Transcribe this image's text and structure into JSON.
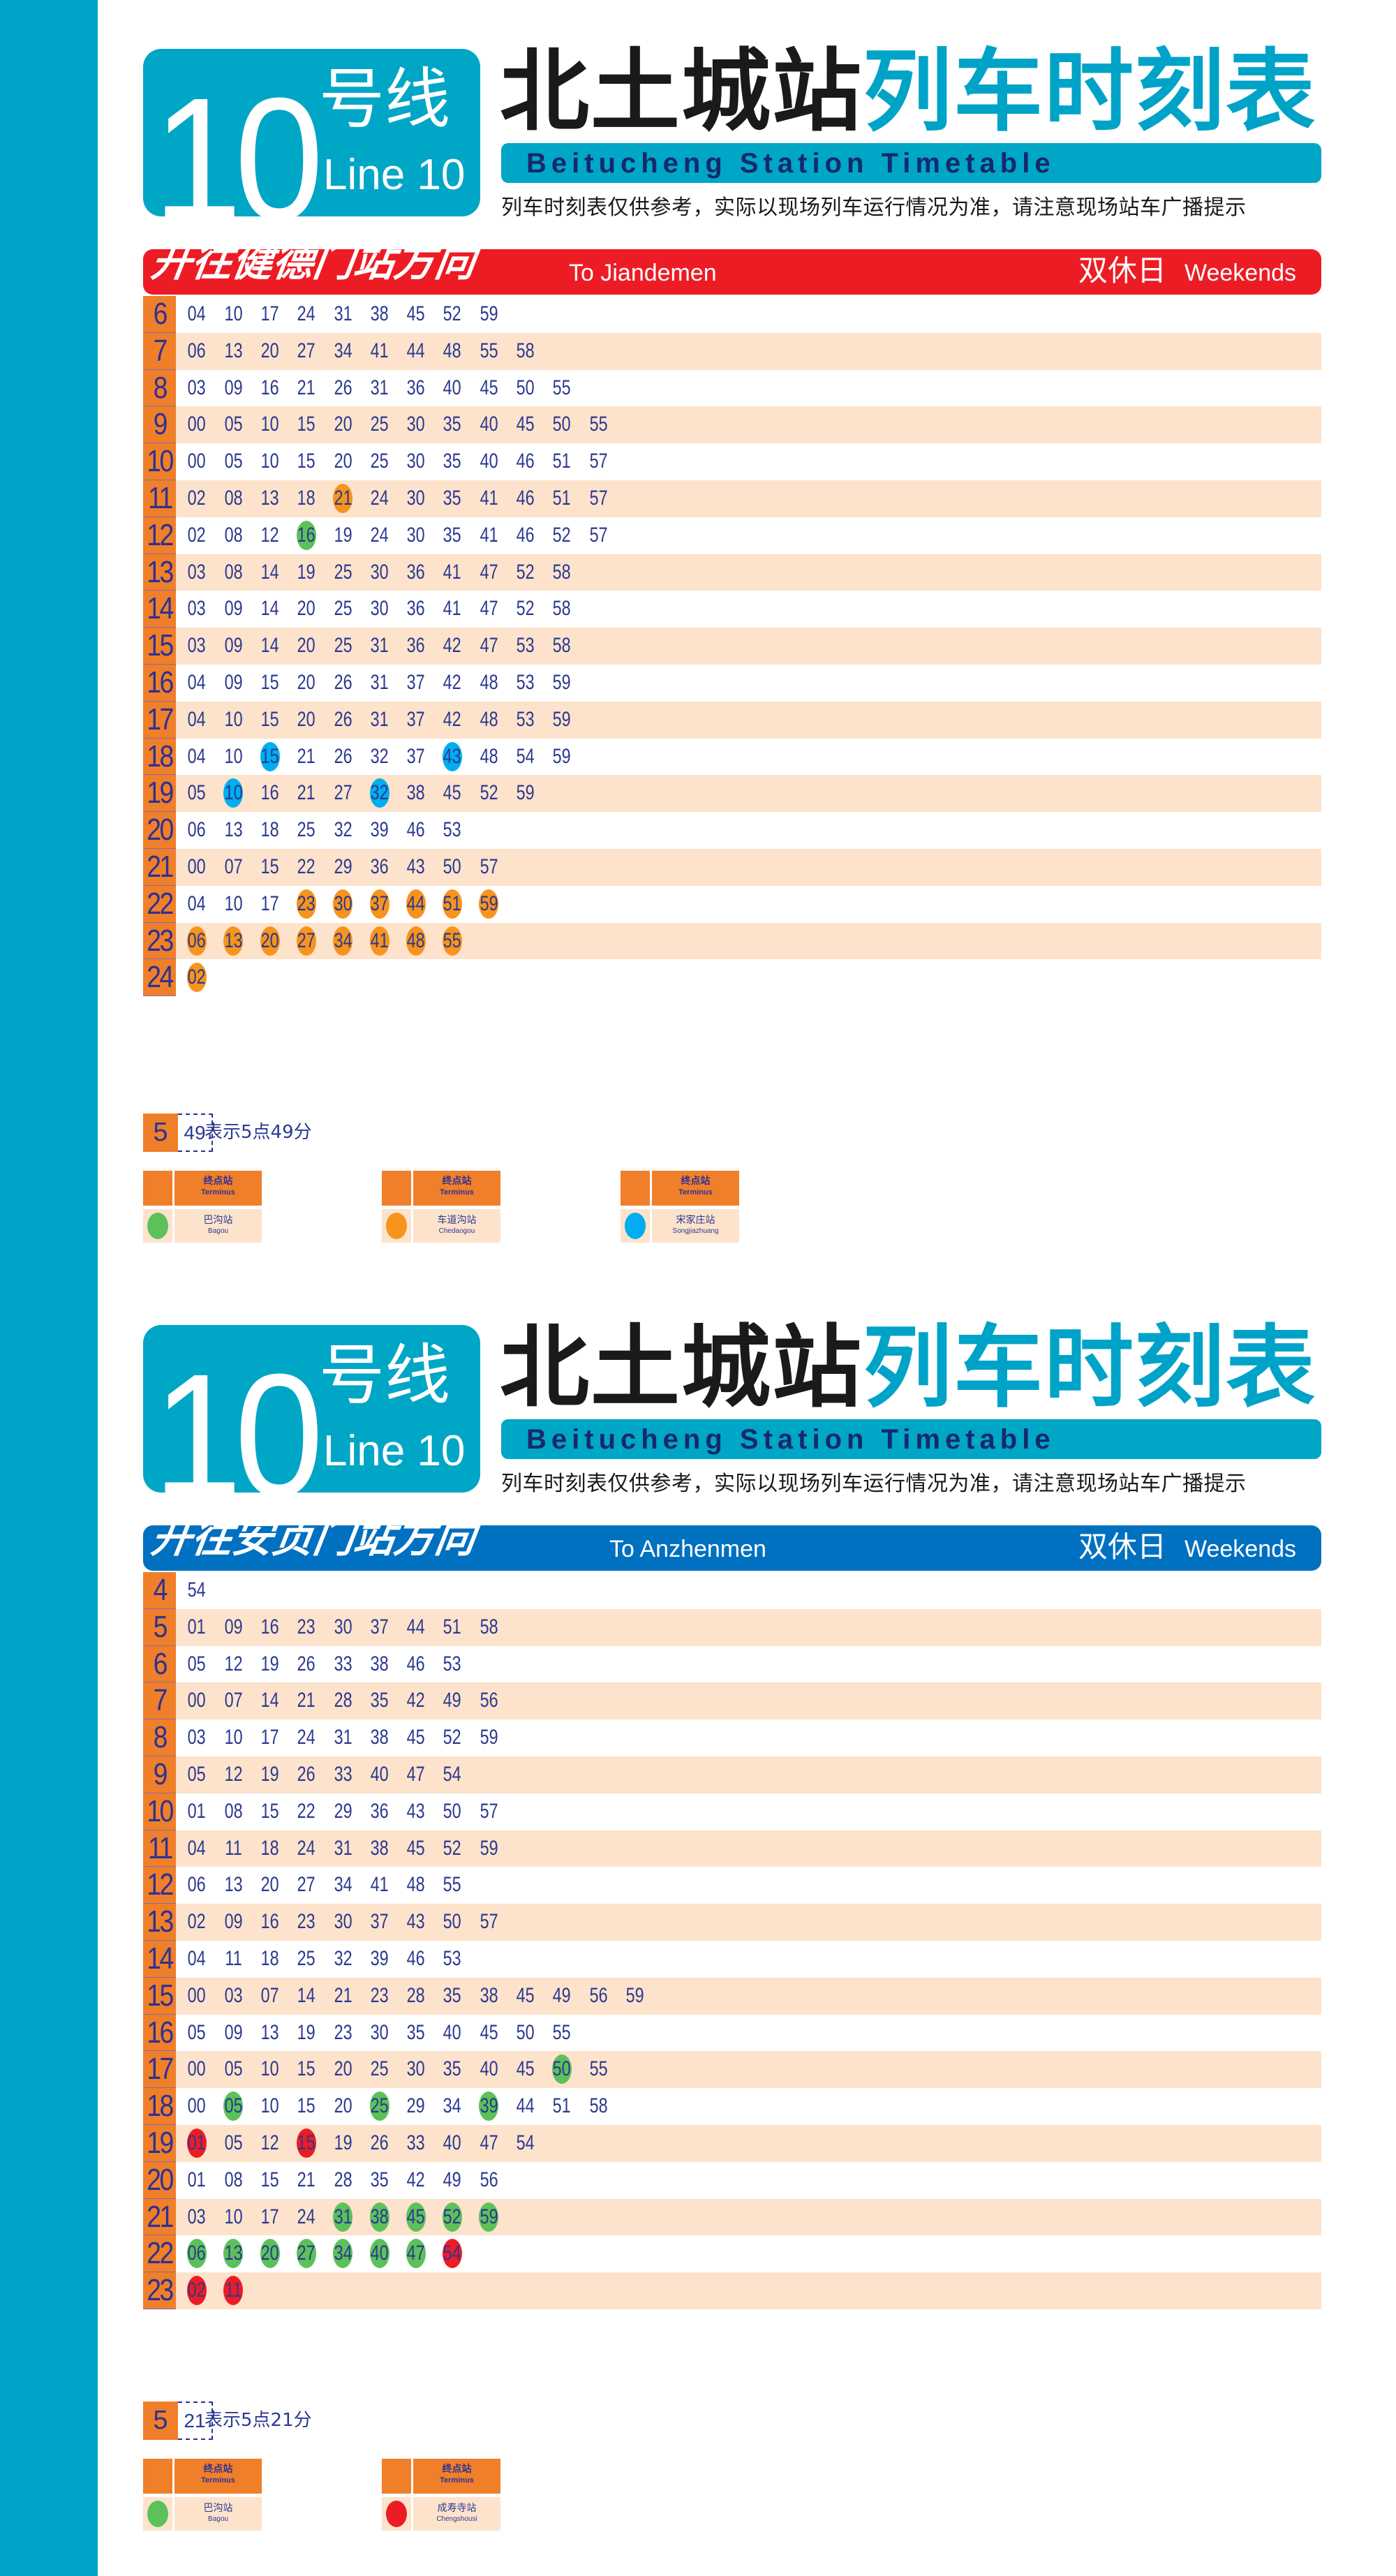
{
  "colors": {
    "strip": "#00a3c8",
    "hour_cell": "#f07f2a",
    "alt_row": "#fde3cc",
    "text": "#2b3990"
  },
  "terminus_colors": {
    "bagou": "#5cc15a",
    "chedaogou": "#f7941d",
    "songjiazhuang": "#00aeef",
    "chengshousi": "#ed1c24"
  },
  "sections": [
    {
      "logo": {
        "number": "10",
        "cn": "号线",
        "en": "Line 10"
      },
      "title_station": "北土城站",
      "title_suffix": "列车时刻表",
      "subtitle": "Beitucheng Station Timetable",
      "note": "列车时刻表仅供参考，实际以现场列车运行情况为准，请注意现场站车广播提示",
      "direction": {
        "cn": "开往健德门站方向",
        "en": "To Jiandemen",
        "color": "#ed1c24",
        "day_cn": "双休日",
        "day_en": "Weekends"
      },
      "rows": [
        {
          "hour": "6",
          "minutes": [
            "04",
            "10",
            "17",
            "24",
            "31",
            "38",
            "45",
            "52",
            "59"
          ]
        },
        {
          "hour": "7",
          "minutes": [
            "06",
            "13",
            "20",
            "27",
            "34",
            "41",
            "44",
            "48",
            "55",
            "58"
          ]
        },
        {
          "hour": "8",
          "minutes": [
            "03",
            "09",
            "16",
            "21",
            "26",
            "31",
            "36",
            "40",
            "45",
            "50",
            "55"
          ]
        },
        {
          "hour": "9",
          "minutes": [
            "00",
            "05",
            "10",
            "15",
            "20",
            "25",
            "30",
            "35",
            "40",
            "45",
            "50",
            "55"
          ]
        },
        {
          "hour": "10",
          "minutes": [
            "00",
            "05",
            "10",
            "15",
            "20",
            "25",
            "30",
            "35",
            "40",
            "46",
            "51",
            "57"
          ]
        },
        {
          "hour": "11",
          "minutes": [
            "02",
            "08",
            "13",
            "18",
            {
              "m": "21",
              "t": "chedaogou"
            },
            "24",
            "30",
            "35",
            "41",
            "46",
            "51",
            "57"
          ]
        },
        {
          "hour": "12",
          "minutes": [
            "02",
            "08",
            "12",
            {
              "m": "16",
              "t": "bagou"
            },
            "19",
            "24",
            "30",
            "35",
            "41",
            "46",
            "52",
            "57"
          ]
        },
        {
          "hour": "13",
          "minutes": [
            "03",
            "08",
            "14",
            "19",
            "25",
            "30",
            "36",
            "41",
            "47",
            "52",
            "58"
          ]
        },
        {
          "hour": "14",
          "minutes": [
            "03",
            "09",
            "14",
            "20",
            "25",
            "30",
            "36",
            "41",
            "47",
            "52",
            "58"
          ]
        },
        {
          "hour": "15",
          "minutes": [
            "03",
            "09",
            "14",
            "20",
            "25",
            "31",
            "36",
            "42",
            "47",
            "53",
            "58"
          ]
        },
        {
          "hour": "16",
          "minutes": [
            "04",
            "09",
            "15",
            "20",
            "26",
            "31",
            "37",
            "42",
            "48",
            "53",
            "59"
          ]
        },
        {
          "hour": "17",
          "minutes": [
            "04",
            "10",
            "15",
            "20",
            "26",
            "31",
            "37",
            "42",
            "48",
            "53",
            "59"
          ]
        },
        {
          "hour": "18",
          "minutes": [
            "04",
            "10",
            {
              "m": "15",
              "t": "songjiazhuang"
            },
            "21",
            "26",
            "32",
            "37",
            {
              "m": "43",
              "t": "songjiazhuang"
            },
            "48",
            "54",
            "59"
          ]
        },
        {
          "hour": "19",
          "minutes": [
            "05",
            {
              "m": "10",
              "t": "songjiazhuang"
            },
            "16",
            "21",
            "27",
            {
              "m": "32",
              "t": "songjiazhuang"
            },
            "38",
            "45",
            "52",
            "59"
          ]
        },
        {
          "hour": "20",
          "minutes": [
            "06",
            "13",
            "18",
            "25",
            "32",
            "39",
            "46",
            "53"
          ]
        },
        {
          "hour": "21",
          "minutes": [
            "00",
            "07",
            "15",
            "22",
            "29",
            "36",
            "43",
            "50",
            "57"
          ]
        },
        {
          "hour": "22",
          "minutes": [
            "04",
            "10",
            "17",
            {
              "m": "23",
              "t": "chedaogou"
            },
            {
              "m": "30",
              "t": "chedaogou"
            },
            {
              "m": "37",
              "t": "chedaogou"
            },
            {
              "m": "44",
              "t": "chedaogou"
            },
            {
              "m": "51",
              "t": "chedaogou"
            },
            {
              "m": "59",
              "t": "chedaogou"
            }
          ]
        },
        {
          "hour": "23",
          "minutes": [
            {
              "m": "06",
              "t": "chedaogou"
            },
            {
              "m": "13",
              "t": "chedaogou"
            },
            {
              "m": "20",
              "t": "chedaogou"
            },
            {
              "m": "27",
              "t": "chedaogou"
            },
            {
              "m": "34",
              "t": "chedaogou"
            },
            {
              "m": "41",
              "t": "chedaogou"
            },
            {
              "m": "48",
              "t": "chedaogou"
            },
            {
              "m": "55",
              "t": "chedaogou"
            }
          ]
        },
        {
          "hour": "24",
          "minutes": [
            {
              "m": "02",
              "t": "chedaogou"
            }
          ]
        }
      ],
      "example": {
        "hour": "5",
        "minute": "49",
        "desc": "表示5点49分"
      },
      "legend": [
        {
          "key": "bagou",
          "head_cn": "终点站",
          "head_en": "Terminus",
          "cn": "巴沟站",
          "en": "Bagou"
        },
        {
          "key": "chedaogou",
          "head_cn": "终点站",
          "head_en": "Terminus",
          "cn": "车道沟站",
          "en": "Chedaogou"
        },
        {
          "key": "songjiazhuang",
          "head_cn": "终点站",
          "head_en": "Terminus",
          "cn": "宋家庄站",
          "en": "Songjiazhuang"
        }
      ]
    },
    {
      "logo": {
        "number": "10",
        "cn": "号线",
        "en": "Line 10"
      },
      "title_station": "北土城站",
      "title_suffix": "列车时刻表",
      "subtitle": "Beitucheng Station Timetable",
      "note": "列车时刻表仅供参考，实际以现场列车运行情况为准，请注意现场站车广播提示",
      "direction": {
        "cn": "开往安贞门站方向",
        "en": "To Anzhenmen",
        "color": "#0070c0",
        "day_cn": "双休日",
        "day_en": "Weekends"
      },
      "rows": [
        {
          "hour": "4",
          "minutes": [
            "54"
          ]
        },
        {
          "hour": "5",
          "minutes": [
            "01",
            "09",
            "16",
            "23",
            "30",
            "37",
            "44",
            "51",
            "58"
          ]
        },
        {
          "hour": "6",
          "minutes": [
            "05",
            "12",
            "19",
            "26",
            "33",
            "38",
            "46",
            "53"
          ]
        },
        {
          "hour": "7",
          "minutes": [
            "00",
            "07",
            "14",
            "21",
            "28",
            "35",
            "42",
            "49",
            "56"
          ]
        },
        {
          "hour": "8",
          "minutes": [
            "03",
            "10",
            "17",
            "24",
            "31",
            "38",
            "45",
            "52",
            "59"
          ]
        },
        {
          "hour": "9",
          "minutes": [
            "05",
            "12",
            "19",
            "26",
            "33",
            "40",
            "47",
            "54"
          ]
        },
        {
          "hour": "10",
          "minutes": [
            "01",
            "08",
            "15",
            "22",
            "29",
            "36",
            "43",
            "50",
            "57"
          ]
        },
        {
          "hour": "11",
          "minutes": [
            "04",
            "11",
            "18",
            "24",
            "31",
            "38",
            "45",
            "52",
            "59"
          ]
        },
        {
          "hour": "12",
          "minutes": [
            "06",
            "13",
            "20",
            "27",
            "34",
            "41",
            "48",
            "55"
          ]
        },
        {
          "hour": "13",
          "minutes": [
            "02",
            "09",
            "16",
            "23",
            "30",
            "37",
            "43",
            "50",
            "57"
          ]
        },
        {
          "hour": "14",
          "minutes": [
            "04",
            "11",
            "18",
            "25",
            "32",
            "39",
            "46",
            "53"
          ]
        },
        {
          "hour": "15",
          "minutes": [
            "00",
            "03",
            "07",
            "14",
            "21",
            "23",
            "28",
            "35",
            "38",
            "45",
            "49",
            "56",
            "59"
          ]
        },
        {
          "hour": "16",
          "minutes": [
            "05",
            "09",
            "13",
            "19",
            "23",
            "30",
            "35",
            "40",
            "45",
            "50",
            "55"
          ]
        },
        {
          "hour": "17",
          "minutes": [
            "00",
            "05",
            "10",
            "15",
            "20",
            "25",
            "30",
            "35",
            "40",
            "45",
            {
              "m": "50",
              "t": "bagou"
            },
            "55"
          ]
        },
        {
          "hour": "18",
          "minutes": [
            "00",
            {
              "m": "05",
              "t": "bagou"
            },
            "10",
            "15",
            "20",
            {
              "m": "25",
              "t": "bagou"
            },
            "29",
            "34",
            {
              "m": "39",
              "t": "bagou"
            },
            "44",
            "51",
            "58"
          ]
        },
        {
          "hour": "19",
          "minutes": [
            {
              "m": "01",
              "t": "chengshousi"
            },
            "05",
            "12",
            {
              "m": "15",
              "t": "chengshousi"
            },
            "19",
            "26",
            "33",
            "40",
            "47",
            "54"
          ]
        },
        {
          "hour": "20",
          "minutes": [
            "01",
            "08",
            "15",
            "21",
            "28",
            "35",
            "42",
            "49",
            "56"
          ]
        },
        {
          "hour": "21",
          "minutes": [
            "03",
            "10",
            "17",
            "24",
            {
              "m": "31",
              "t": "bagou"
            },
            {
              "m": "38",
              "t": "bagou"
            },
            {
              "m": "45",
              "t": "bagou"
            },
            {
              "m": "52",
              "t": "bagou"
            },
            {
              "m": "59",
              "t": "bagou"
            }
          ]
        },
        {
          "hour": "22",
          "minutes": [
            {
              "m": "06",
              "t": "bagou"
            },
            {
              "m": "13",
              "t": "bagou"
            },
            {
              "m": "20",
              "t": "bagou"
            },
            {
              "m": "27",
              "t": "bagou"
            },
            {
              "m": "34",
              "t": "bagou"
            },
            {
              "m": "40",
              "t": "bagou"
            },
            {
              "m": "47",
              "t": "bagou"
            },
            {
              "m": "54",
              "t": "chengshousi"
            }
          ]
        },
        {
          "hour": "23",
          "minutes": [
            {
              "m": "02",
              "t": "chengshousi"
            },
            {
              "m": "11",
              "t": "chengshousi"
            }
          ]
        }
      ],
      "example": {
        "hour": "5",
        "minute": "21",
        "desc": "表示5点21分"
      },
      "legend": [
        {
          "key": "bagou",
          "head_cn": "终点站",
          "head_en": "Terminus",
          "cn": "巴沟站",
          "en": "Bagou"
        },
        {
          "key": "chengshousi",
          "head_cn": "终点站",
          "head_en": "Terminus",
          "cn": "成寿寺站",
          "en": "Chengshousi"
        }
      ]
    }
  ]
}
